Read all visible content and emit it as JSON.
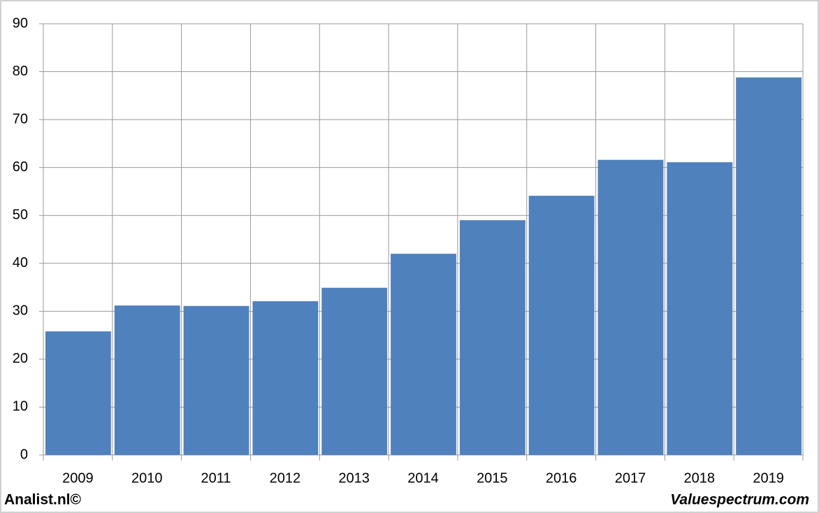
{
  "chart_data": {
    "type": "bar",
    "categories": [
      "2009",
      "2010",
      "2011",
      "2012",
      "2013",
      "2014",
      "2015",
      "2016",
      "2017",
      "2018",
      "2019"
    ],
    "values": [
      25.8,
      31.2,
      31.1,
      32.1,
      34.9,
      42.0,
      49.0,
      54.1,
      61.6,
      61.1,
      78.8
    ],
    "color": "#4f81bd",
    "ylim": [
      0,
      90
    ],
    "yticks": [
      0,
      10,
      20,
      30,
      40,
      50,
      60,
      70,
      80,
      90
    ],
    "grid": true,
    "footer_left": "Analist.nl©",
    "footer_right": "Valuespectrum.com"
  }
}
